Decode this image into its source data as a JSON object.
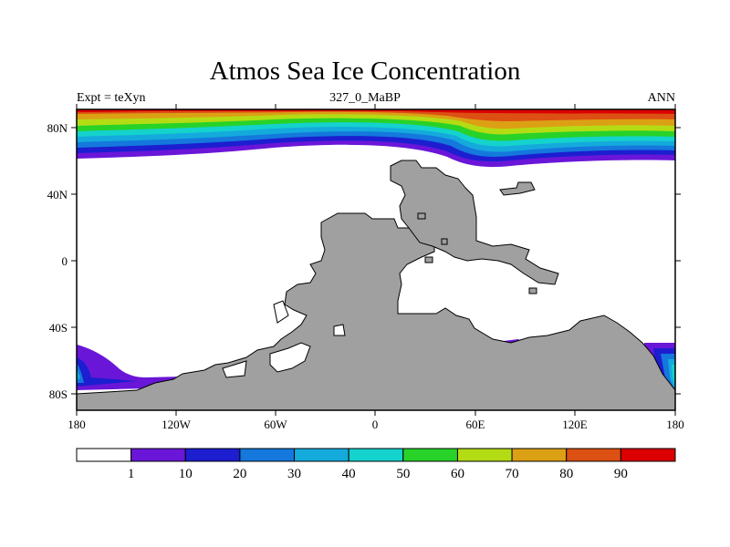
{
  "title": "Atmos Sea Ice Concentration",
  "subtitle_left": "Expt = teXyn",
  "subtitle_center": "327_0_MaBP",
  "subtitle_right": "ANN",
  "x_tick_labels": [
    "180",
    "120W",
    "60W",
    "0",
    "60E",
    "120E",
    "180"
  ],
  "y_tick_labels": [
    "80N",
    "40N",
    "0",
    "40S",
    "80S"
  ],
  "colorbar": {
    "colors": [
      "#ffffff",
      "#6a16d8",
      "#1c1ed0",
      "#1478dc",
      "#14aadc",
      "#14d2cc",
      "#28d228",
      "#b4dc14",
      "#dca014",
      "#dc5014",
      "#dc0000"
    ],
    "labels": [
      "1",
      "10",
      "20",
      "30",
      "40",
      "50",
      "60",
      "70",
      "80",
      "90"
    ]
  },
  "land_color": "#a0a0a0"
}
